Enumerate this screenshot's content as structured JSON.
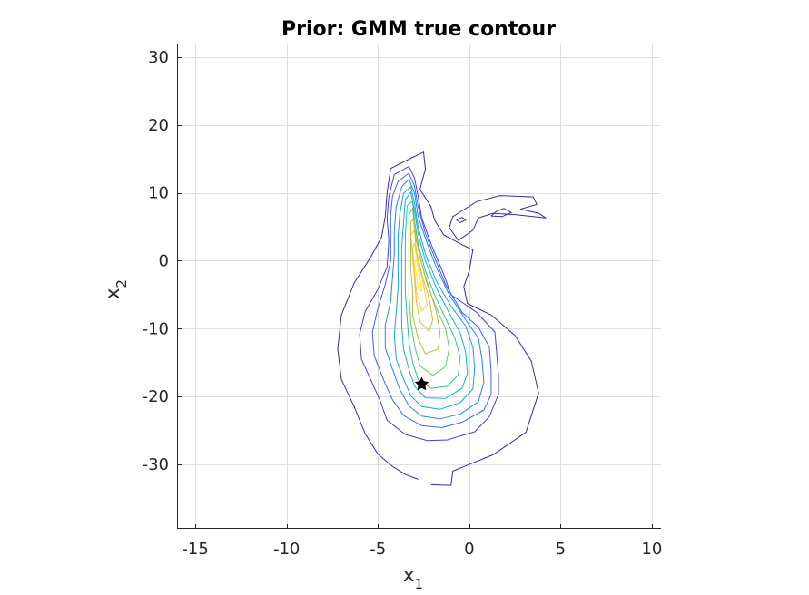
{
  "figure": {
    "title": "Prior: GMM true contour"
  },
  "chart_data": {
    "type": "contour",
    "title": "Prior: GMM true contour",
    "xlabel": {
      "base": "x",
      "subscript": "1"
    },
    "ylabel": {
      "base": "x",
      "subscript": "2"
    },
    "xlim": [
      -16,
      10.5
    ],
    "ylim": [
      -39.5,
      32
    ],
    "xticks": [
      -15,
      -10,
      -5,
      0,
      5,
      10
    ],
    "yticks": [
      -30,
      -20,
      -10,
      0,
      10,
      20,
      30
    ],
    "grid": true,
    "colormap": [
      "#3e26a8",
      "#4a3dd6",
      "#3d62f5",
      "#2783f4",
      "#1c9ee4",
      "#13b4c4",
      "#2ec19c",
      "#6cc66b",
      "#b0bf3e",
      "#e2b62c",
      "#f8cf2a",
      "#f9e71b"
    ],
    "marker": {
      "x": -2.6,
      "y": -18.2,
      "symbol": "star",
      "color": "#000000"
    },
    "levels": [
      [
        [
          [
            -4.3,
            13.6
          ],
          [
            -3.2,
            15.1
          ],
          [
            -2.5,
            16.0
          ],
          [
            -2.4,
            13.5
          ],
          [
            -2.7,
            10.5
          ],
          [
            -2.1,
            8.0
          ],
          [
            -1.9,
            6.0
          ],
          [
            -1.4,
            3.8
          ],
          [
            -0.5,
            2.5
          ],
          [
            0.2,
            1.6
          ],
          [
            0.0,
            -1.5
          ],
          [
            -0.3,
            -3.8
          ],
          [
            -0.1,
            -6.3
          ],
          [
            1.2,
            -8.0
          ],
          [
            2.5,
            -11.0
          ],
          [
            3.4,
            -14.8
          ],
          [
            3.8,
            -19.5
          ],
          [
            3.1,
            -25.3
          ],
          [
            1.3,
            -28.6
          ],
          [
            -0.9,
            -31.0
          ],
          [
            -1.0,
            -33.1
          ],
          [
            -2.1,
            -33.0
          ]
        ],
        [
          [
            -2.8,
            -32.2
          ],
          [
            -3.5,
            -31.5
          ],
          [
            -4.2,
            -30.3
          ],
          [
            -5.0,
            -28.5
          ],
          [
            -5.7,
            -25.5
          ],
          [
            -6.3,
            -21.5
          ],
          [
            -7.0,
            -17.5
          ],
          [
            -7.2,
            -13.0
          ],
          [
            -7.0,
            -8.0
          ],
          [
            -6.3,
            -3.3
          ],
          [
            -5.4,
            0.5
          ],
          [
            -4.8,
            3.5
          ],
          [
            -4.6,
            6.5
          ],
          [
            -4.5,
            10.0
          ],
          [
            -4.3,
            13.6
          ]
        ]
      ],
      [
        [
          [
            -4.1,
            12.7
          ],
          [
            -3.3,
            13.9
          ],
          [
            -3.0,
            12.2
          ],
          [
            -2.8,
            9.5
          ],
          [
            -2.6,
            6.3
          ],
          [
            -2.1,
            2.5
          ],
          [
            -1.4,
            -2.0
          ],
          [
            -1.0,
            -5.0
          ],
          [
            0.4,
            -7.6
          ],
          [
            1.4,
            -10.5
          ],
          [
            1.5,
            -13.5
          ],
          [
            1.6,
            -17.0
          ],
          [
            1.6,
            -19.7
          ],
          [
            1.1,
            -23.0
          ],
          [
            0.3,
            -25.2
          ],
          [
            -1.2,
            -26.4
          ],
          [
            -2.3,
            -26.5
          ],
          [
            -3.5,
            -25.6
          ],
          [
            -4.5,
            -23.5
          ],
          [
            -4.9,
            -20.5
          ],
          [
            -5.4,
            -17.5
          ],
          [
            -5.9,
            -14.5
          ],
          [
            -6.0,
            -10.8
          ],
          [
            -5.7,
            -7.5
          ],
          [
            -5.0,
            -4.2
          ],
          [
            -4.5,
            -0.9
          ],
          [
            -4.4,
            2.9
          ],
          [
            -4.5,
            6.2
          ],
          [
            -4.4,
            9.5
          ],
          [
            -4.1,
            12.7
          ]
        ]
      ],
      [
        [
          [
            -3.9,
            11.7
          ],
          [
            -3.3,
            12.9
          ],
          [
            -3.0,
            11.0
          ],
          [
            -2.8,
            8.0
          ],
          [
            -2.4,
            4.0
          ],
          [
            -1.9,
            0.5
          ],
          [
            -1.3,
            -3.5
          ],
          [
            -0.4,
            -7.6
          ],
          [
            0.5,
            -9.8
          ],
          [
            1.1,
            -12.7
          ],
          [
            1.2,
            -16.2
          ],
          [
            1.2,
            -19.7
          ],
          [
            0.8,
            -22.0
          ],
          [
            -0.4,
            -23.8
          ],
          [
            -1.5,
            -24.6
          ],
          [
            -2.6,
            -24.3
          ],
          [
            -3.6,
            -22.8
          ],
          [
            -4.2,
            -20.5
          ],
          [
            -4.7,
            -17.5
          ],
          [
            -5.2,
            -14.0
          ],
          [
            -5.3,
            -10.5
          ],
          [
            -5.0,
            -7.0
          ],
          [
            -4.6,
            -3.5
          ],
          [
            -4.3,
            0.0
          ],
          [
            -4.3,
            3.5
          ],
          [
            -4.3,
            6.9
          ],
          [
            -4.2,
            9.5
          ],
          [
            -3.9,
            11.7
          ]
        ]
      ],
      [
        [
          [
            -3.7,
            10.9
          ],
          [
            -3.3,
            12.0
          ],
          [
            -3.0,
            10.0
          ],
          [
            -2.8,
            6.5
          ],
          [
            -2.3,
            2.5
          ],
          [
            -1.8,
            -1.0
          ],
          [
            -1.1,
            -5.0
          ],
          [
            -0.2,
            -8.7
          ],
          [
            0.5,
            -11.4
          ],
          [
            0.7,
            -14.5
          ],
          [
            0.8,
            -17.9
          ],
          [
            0.5,
            -20.8
          ],
          [
            -0.5,
            -22.6
          ],
          [
            -1.6,
            -23.3
          ],
          [
            -2.6,
            -22.9
          ],
          [
            -3.3,
            -21.4
          ],
          [
            -3.8,
            -19.0
          ],
          [
            -4.2,
            -16.0
          ],
          [
            -4.6,
            -12.8
          ],
          [
            -4.6,
            -9.5
          ],
          [
            -4.3,
            -6.0
          ],
          [
            -4.2,
            -2.5
          ],
          [
            -4.1,
            1.0
          ],
          [
            -4.1,
            4.5
          ],
          [
            -4.0,
            8.0
          ],
          [
            -3.7,
            10.9
          ]
        ]
      ],
      [
        [
          [
            -3.6,
            9.9
          ],
          [
            -3.2,
            10.9
          ],
          [
            -3.0,
            8.5
          ],
          [
            -2.8,
            5.0
          ],
          [
            -2.4,
            1.0
          ],
          [
            -1.8,
            -3.0
          ],
          [
            -1.0,
            -6.7
          ],
          [
            -0.2,
            -9.6
          ],
          [
            0.2,
            -12.7
          ],
          [
            0.3,
            -15.8
          ],
          [
            0.2,
            -18.9
          ],
          [
            -0.5,
            -20.9
          ],
          [
            -1.6,
            -21.9
          ],
          [
            -2.6,
            -21.5
          ],
          [
            -3.2,
            -19.9
          ],
          [
            -3.6,
            -17.4
          ],
          [
            -4.0,
            -14.5
          ],
          [
            -4.1,
            -11.0
          ],
          [
            -4.0,
            -7.5
          ],
          [
            -3.9,
            -4.0
          ],
          [
            -3.9,
            0.0
          ],
          [
            -3.9,
            3.5
          ],
          [
            -3.8,
            7.0
          ],
          [
            -3.6,
            9.9
          ]
        ]
      ],
      [
        [
          [
            -3.5,
            9.0
          ],
          [
            -3.2,
            10.1
          ],
          [
            -3.0,
            7.5
          ],
          [
            -2.8,
            4.0
          ],
          [
            -2.4,
            0.0
          ],
          [
            -1.8,
            -4.0
          ],
          [
            -1.1,
            -7.7
          ],
          [
            -0.5,
            -10.6
          ],
          [
            -0.2,
            -13.5
          ],
          [
            -0.1,
            -16.6
          ],
          [
            -0.4,
            -18.8
          ],
          [
            -1.3,
            -20.3
          ],
          [
            -2.4,
            -20.2
          ],
          [
            -3.0,
            -18.5
          ],
          [
            -3.3,
            -16.0
          ],
          [
            -3.6,
            -13.0
          ],
          [
            -3.7,
            -9.5
          ],
          [
            -3.7,
            -6.0
          ],
          [
            -3.7,
            -2.0
          ],
          [
            -3.7,
            2.0
          ],
          [
            -3.6,
            5.5
          ],
          [
            -3.5,
            9.0
          ]
        ]
      ],
      [
        [
          [
            -3.4,
            8.1
          ],
          [
            -3.1,
            8.8
          ],
          [
            -3.0,
            6.0
          ],
          [
            -2.8,
            2.5
          ],
          [
            -2.4,
            -1.5
          ],
          [
            -1.9,
            -5.0
          ],
          [
            -1.3,
            -8.5
          ],
          [
            -0.8,
            -11.3
          ],
          [
            -0.5,
            -14.2
          ],
          [
            -0.6,
            -16.8
          ],
          [
            -1.2,
            -18.5
          ],
          [
            -2.1,
            -18.8
          ],
          [
            -2.8,
            -17.5
          ],
          [
            -3.1,
            -15.0
          ],
          [
            -3.3,
            -12.0
          ],
          [
            -3.4,
            -8.5
          ],
          [
            -3.5,
            -4.5
          ],
          [
            -3.5,
            -0.5
          ],
          [
            -3.5,
            3.5
          ],
          [
            -3.4,
            8.1
          ]
        ]
      ],
      [
        [
          [
            -3.3,
            6.8
          ],
          [
            -3.1,
            7.7
          ],
          [
            -3.0,
            4.5
          ],
          [
            -2.7,
            0.5
          ],
          [
            -2.3,
            -3.5
          ],
          [
            -1.8,
            -7.0
          ],
          [
            -1.3,
            -10.0
          ],
          [
            -1.1,
            -12.9
          ],
          [
            -1.3,
            -15.6
          ],
          [
            -2.0,
            -16.9
          ],
          [
            -2.7,
            -15.5
          ],
          [
            -3.0,
            -12.5
          ],
          [
            -3.2,
            -9.0
          ],
          [
            -3.3,
            -5.0
          ],
          [
            -3.3,
            -1.0
          ],
          [
            -3.3,
            2.5
          ],
          [
            -3.3,
            6.8
          ]
        ]
      ],
      [
        [
          [
            -3.2,
            5.7
          ],
          [
            -3.0,
            6.2
          ],
          [
            -2.9,
            3.0
          ],
          [
            -2.6,
            -0.5
          ],
          [
            -2.2,
            -4.0
          ],
          [
            -1.8,
            -7.5
          ],
          [
            -1.6,
            -10.5
          ],
          [
            -1.7,
            -13.0
          ],
          [
            -2.4,
            -13.7
          ],
          [
            -2.8,
            -11.5
          ],
          [
            -3.1,
            -8.0
          ],
          [
            -3.1,
            -4.5
          ],
          [
            -3.2,
            -1.0
          ],
          [
            -3.2,
            2.5
          ],
          [
            -3.2,
            5.7
          ]
        ]
      ],
      [
        [
          [
            -3.2,
            3.8
          ],
          [
            -3.0,
            4.5
          ],
          [
            -2.9,
            1.5
          ],
          [
            -2.6,
            -2.0
          ],
          [
            -2.2,
            -5.5
          ],
          [
            -2.0,
            -8.7
          ],
          [
            -2.2,
            -10.4
          ],
          [
            -2.7,
            -9.0
          ],
          [
            -2.9,
            -6.0
          ],
          [
            -3.0,
            -2.5
          ],
          [
            -3.1,
            0.5
          ],
          [
            -3.2,
            3.8
          ]
        ]
      ],
      [
        [
          [
            -3.1,
            1.8
          ],
          [
            -3.0,
            2.5
          ],
          [
            -2.8,
            -0.5
          ],
          [
            -2.5,
            -3.5
          ],
          [
            -2.3,
            -6.5
          ],
          [
            -2.6,
            -7.4
          ],
          [
            -2.9,
            -4.5
          ],
          [
            -3.0,
            -1.5
          ],
          [
            -3.1,
            1.8
          ]
        ]
      ],
      [
        [
          [
            -3.0,
            -0.5
          ],
          [
            -2.9,
            0.2
          ],
          [
            -2.7,
            -2.5
          ],
          [
            -2.6,
            -4.5
          ],
          [
            -2.8,
            -4.0
          ],
          [
            -2.9,
            -2.0
          ],
          [
            -3.0,
            -0.5
          ]
        ]
      ]
    ],
    "tail": [
      [
        [
          -1.1,
          4.9
        ],
        [
          -0.9,
          6.5
        ],
        [
          0.4,
          8.7
        ],
        [
          1.7,
          9.6
        ],
        [
          3.5,
          9.4
        ],
        [
          3.7,
          8.3
        ],
        [
          2.8,
          7.6
        ],
        [
          3.8,
          7.0
        ],
        [
          4.2,
          6.3
        ],
        [
          2.5,
          6.8
        ],
        [
          1.3,
          7.0
        ],
        [
          0.5,
          6.3
        ],
        [
          0.2,
          4.5
        ],
        [
          -0.6,
          3.0
        ],
        [
          -1.1,
          4.9
        ]
      ],
      [
        [
          1.2,
          6.6
        ],
        [
          1.5,
          7.3
        ],
        [
          1.9,
          7.7
        ],
        [
          2.3,
          7.1
        ],
        [
          1.8,
          6.5
        ],
        [
          1.2,
          6.6
        ]
      ],
      [
        [
          -0.7,
          6.0
        ],
        [
          -0.4,
          6.4
        ],
        [
          -0.2,
          6.0
        ],
        [
          -0.5,
          5.6
        ],
        [
          -0.7,
          6.0
        ]
      ]
    ]
  }
}
